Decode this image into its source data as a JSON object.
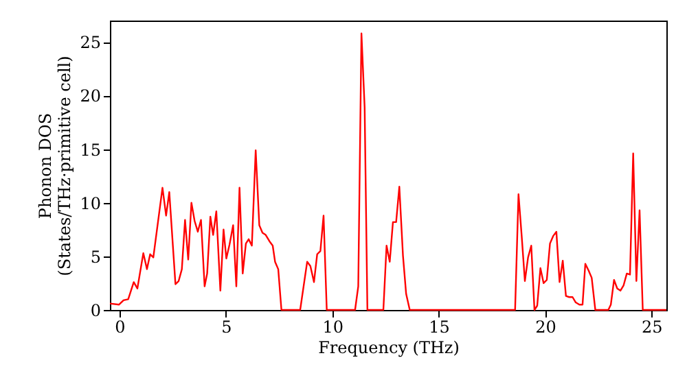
{
  "chart_data": {
    "type": "line",
    "xlabel": "Frequency (THz)",
    "ylabel": "Phonon DOS\n(States/THz·primitive cell)",
    "x": [
      -0.45,
      -0.02,
      0.19,
      0.41,
      0.67,
      0.84,
      1.12,
      1.29,
      1.44,
      1.59,
      2.02,
      2.19,
      2.34,
      2.63,
      2.78,
      2.93,
      3.08,
      3.23,
      3.38,
      3.53,
      3.68,
      3.83,
      4.0,
      4.12,
      4.27,
      4.4,
      4.55,
      4.74,
      4.89,
      5.02,
      5.17,
      5.34,
      5.49,
      5.64,
      5.79,
      5.94,
      6.07,
      6.22,
      6.4,
      6.57,
      6.72,
      6.87,
      7.05,
      7.2,
      7.31,
      7.46,
      7.61,
      8.49,
      8.82,
      8.97,
      9.14,
      9.29,
      9.44,
      9.59,
      9.74,
      11.07,
      11.22,
      11.37,
      11.52,
      11.65,
      12.4,
      12.55,
      12.7,
      12.85,
      13.0,
      13.15,
      13.32,
      13.47,
      13.64,
      18.59,
      18.75,
      18.9,
      19.05,
      19.2,
      19.35,
      19.5,
      19.63,
      19.78,
      19.93,
      20.08,
      20.23,
      20.38,
      20.53,
      20.68,
      20.83,
      20.98,
      21.13,
      21.29,
      21.44,
      21.61,
      21.76,
      21.89,
      22.04,
      22.19,
      22.36,
      22.97,
      23.09,
      23.24,
      23.39,
      23.54,
      23.69,
      23.84,
      23.99,
      24.14,
      24.29,
      24.44,
      24.59,
      25.7
    ],
    "series": [
      {
        "color": "#ff0000",
        "values": [
          0.6,
          0.5,
          0.9,
          1.0,
          2.6,
          2.0,
          5.3,
          3.8,
          5.2,
          4.9,
          11.4,
          8.8,
          11.0,
          2.4,
          2.7,
          3.8,
          8.4,
          4.7,
          10.0,
          8.3,
          7.3,
          8.4,
          2.2,
          3.4,
          8.7,
          7.0,
          9.2,
          1.8,
          7.5,
          4.8,
          6.1,
          7.9,
          2.2,
          11.4,
          3.4,
          6.2,
          6.6,
          6.0,
          14.9,
          7.9,
          7.2,
          7.0,
          6.4,
          6.0,
          4.5,
          3.8,
          0,
          0,
          4.5,
          4.1,
          2.6,
          5.2,
          5.5,
          8.8,
          0,
          0,
          2.2,
          25.8,
          18.9,
          0,
          0,
          6.0,
          4.5,
          8.2,
          8.2,
          11.5,
          5.1,
          1.5,
          0,
          0,
          10.8,
          6.9,
          2.7,
          4.9,
          6.0,
          0,
          0.4,
          3.9,
          2.5,
          2.8,
          6.2,
          6.9,
          7.3,
          2.6,
          4.6,
          1.3,
          1.2,
          1.2,
          0.7,
          0.5,
          0.5,
          4.3,
          3.7,
          3.0,
          0,
          0,
          0.5,
          2.8,
          2.0,
          1.8,
          2.3,
          3.4,
          3.3,
          14.6,
          2.7,
          9.3,
          0,
          0
        ]
      }
    ],
    "xlim": [
      -0.45,
      25.7
    ],
    "ylim": [
      0,
      27
    ],
    "xticks": [
      0,
      5,
      10,
      15,
      20,
      25
    ],
    "yticks": [
      0,
      5,
      10,
      15,
      20,
      25
    ],
    "grid": false
  }
}
